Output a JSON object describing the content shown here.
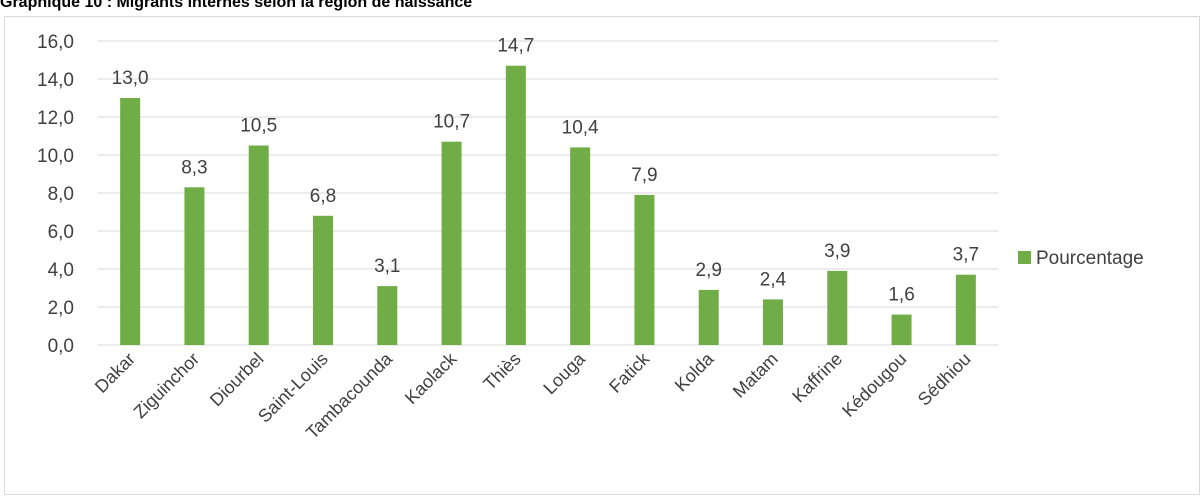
{
  "chart_data": {
    "type": "bar",
    "title": "Graphique 10 : Migrants internes selon la région de naissance",
    "xlabel": "",
    "ylabel": "",
    "categories": [
      "Dakar",
      "Ziguinchor",
      "Diourbel",
      "Saint-Louis",
      "Tambacounda",
      "Kaolack",
      "Thiès",
      "Louga",
      "Fatick",
      "Kolda",
      "Matam",
      "Kaffrine",
      "Kédougou",
      "Sédhiou"
    ],
    "series": [
      {
        "name": "Pourcentage",
        "values": [
          13.0,
          8.3,
          10.5,
          6.8,
          3.1,
          10.7,
          14.7,
          10.4,
          7.9,
          2.9,
          2.4,
          3.9,
          1.6,
          3.7
        ],
        "labels": [
          "13,0",
          "8,3",
          "10,5",
          "6,8",
          "3,1",
          "10,7",
          "14,7",
          "10,4",
          "7,9",
          "2,9",
          "2,4",
          "3,9",
          "1,6",
          "3,7"
        ]
      }
    ],
    "ylim": [
      0,
      16
    ],
    "yticks": [
      0,
      2,
      4,
      6,
      8,
      10,
      12,
      14,
      16
    ],
    "ytick_labels": [
      "0,0",
      "2,0",
      "4,0",
      "6,0",
      "8,0",
      "10,0",
      "12,0",
      "14,0",
      "16,0"
    ],
    "grid": true,
    "legend_position": "right",
    "colors": {
      "bar": "#70ad47",
      "grid": "#d9d9d9",
      "text": "#404040"
    }
  }
}
